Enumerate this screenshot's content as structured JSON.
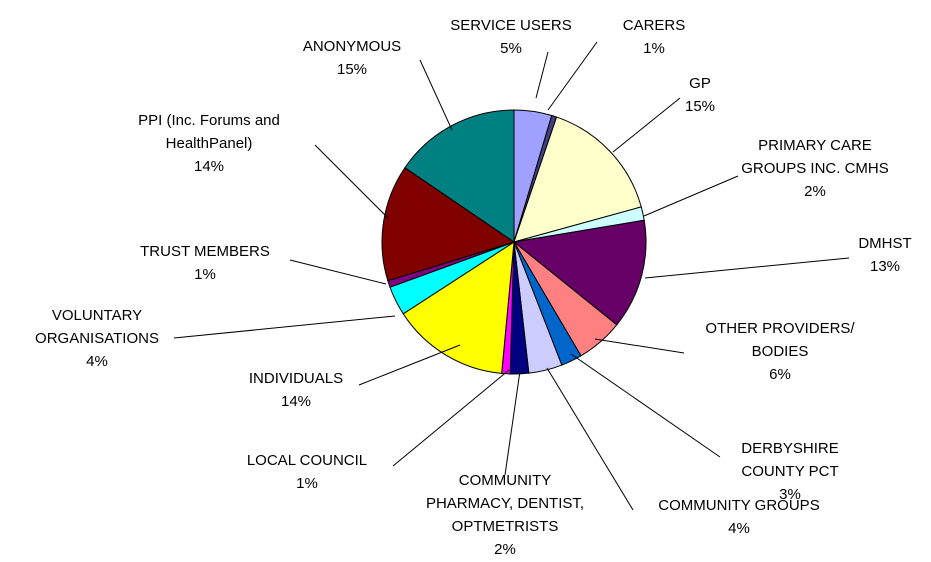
{
  "chart_data": {
    "type": "pie",
    "title": "",
    "slices": [
      {
        "label": [
          "SERVICE USERS"
        ],
        "pct_text": "5%",
        "value": 4.5,
        "color": "#A0A0FF"
      },
      {
        "label": [
          "CARERS"
        ],
        "pct_text": "1%",
        "value": 0.6,
        "color": "#404080"
      },
      {
        "label": [
          "GP"
        ],
        "pct_text": "15%",
        "value": 15.1,
        "color": "#FFFFCC"
      },
      {
        "label": [
          "PRIMARY CARE",
          "GROUPS INC. CMHS"
        ],
        "pct_text": "2%",
        "value": 1.6,
        "color": "#CCFFFF"
      },
      {
        "label": [
          "DMHST"
        ],
        "pct_text": "13%",
        "value": 13.1,
        "color": "#660066"
      },
      {
        "label": [
          "OTHER PROVIDERS/",
          "BODIES"
        ],
        "pct_text": "6%",
        "value": 5.6,
        "color": "#FF8080"
      },
      {
        "label": [
          "DERBYSHIRE",
          "COUNTY PCT"
        ],
        "pct_text": "3%",
        "value": 2.5,
        "color": "#0066CC"
      },
      {
        "label": [
          "COMMUNITY GROUPS"
        ],
        "pct_text": "4%",
        "value": 4.0,
        "color": "#CCCCFF"
      },
      {
        "label": [
          "COMMUNITY",
          "PHARMACY, DENTIST,",
          "OPTMETRISTS"
        ],
        "pct_text": "2%",
        "value": 2.2,
        "color": "#000080"
      },
      {
        "label": [
          "LOCAL COUNCIL"
        ],
        "pct_text": "1%",
        "value": 1.0,
        "color": "#FF00FF"
      },
      {
        "label": [
          "INDIVIDUALS"
        ],
        "pct_text": "14%",
        "value": 14.0,
        "color": "#FFFF00"
      },
      {
        "label": [
          "VOLUNTARY",
          "ORGANISATIONS"
        ],
        "pct_text": "4%",
        "value": 3.5,
        "color": "#00FFFF"
      },
      {
        "label": [
          "TRUST MEMBERS"
        ],
        "pct_text": "1%",
        "value": 0.8,
        "color": "#800080"
      },
      {
        "label": [
          "PPI (Inc. Forums and",
          "HealthPanel)"
        ],
        "pct_text": "14%",
        "value": 13.9,
        "color": "#800000"
      },
      {
        "label": [
          "ANONYMOUS"
        ],
        "pct_text": "15%",
        "value": 15.1,
        "color": "#008080"
      }
    ]
  }
}
